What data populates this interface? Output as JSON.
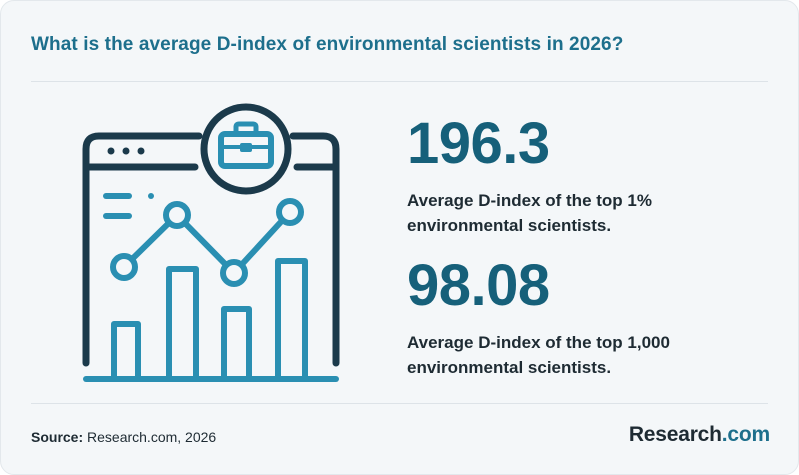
{
  "title": "What is the average D-index of environmental scientists in 2026?",
  "stats": [
    {
      "value": "196.3",
      "description": "Average D-index of the top 1% environmental scientists."
    },
    {
      "value": "98.08",
      "description": "Average D-index of the top 1,000 environmental scientists."
    }
  ],
  "source": {
    "label": "Source:",
    "text": "Research.com, 2026"
  },
  "logo": {
    "main": "Research",
    "suffix": ".com"
  },
  "illustration": {
    "icons": [
      "browser-window-icon",
      "briefcase-icon",
      "bar-chart-icon",
      "line-chart-icon"
    ]
  },
  "colors": {
    "accent": "#1d6f8c",
    "dark": "#16607a",
    "ink": "#1e2b33",
    "icon_dark": "#1b3a4b",
    "icon_teal": "#2a8fb2"
  }
}
